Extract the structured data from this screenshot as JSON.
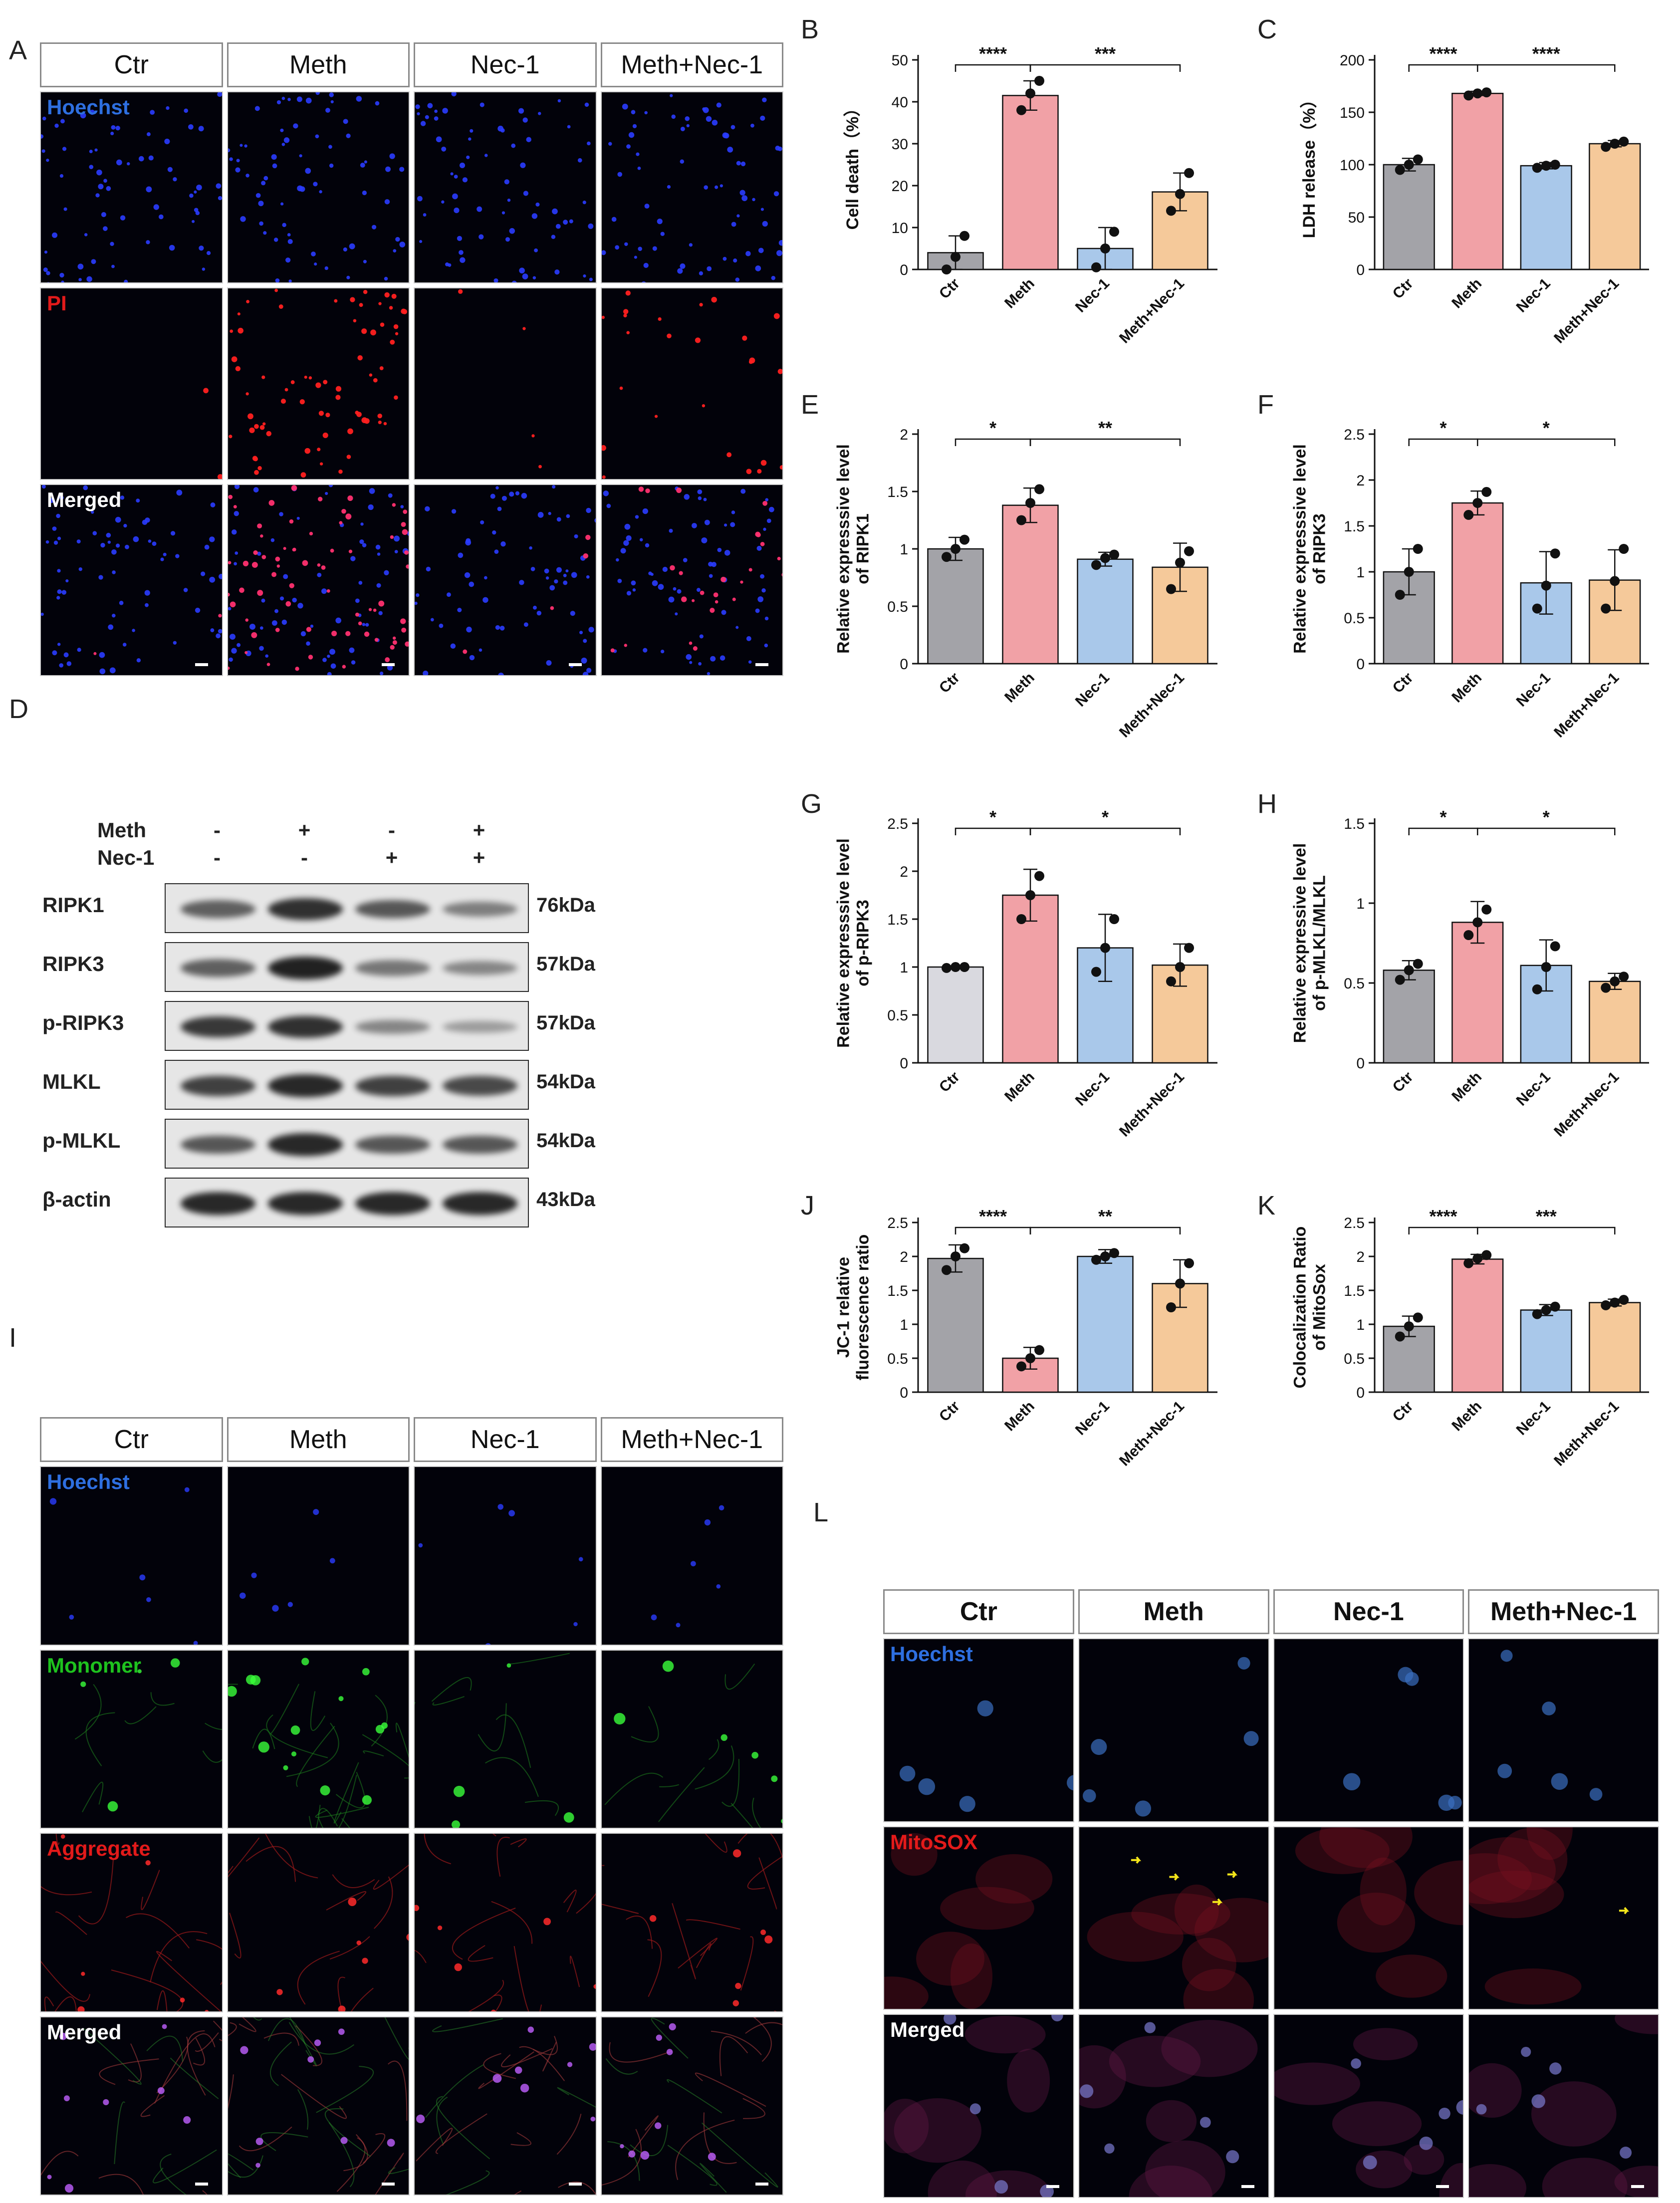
{
  "panels": {
    "A": "A",
    "B": "B",
    "C": "C",
    "D": "D",
    "E": "E",
    "F": "F",
    "G": "G",
    "H": "H",
    "I": "I",
    "J": "J",
    "K": "K",
    "L": "L"
  },
  "groups": [
    "Ctr",
    "Meth",
    "Nec-1",
    "Meth+Nec-1"
  ],
  "colors": {
    "Ctr": "#a3a3a8",
    "Meth": "#f1a1a6",
    "Nec-1": "#a9c8ea",
    "Meth+Nec-1": "#f5c99a",
    "Ctr_G": "#d9d9df"
  },
  "micro_A": {
    "headers": [
      "Ctr",
      "Meth",
      "Nec-1",
      "Meth+Nec-1"
    ],
    "rows": [
      {
        "label": "Hoechst",
        "color": "#2e6fe0"
      },
      {
        "label": "PI",
        "color": "#e21a1a"
      },
      {
        "label": "Merged",
        "color": "#ffffff"
      }
    ]
  },
  "micro_I": {
    "headers": [
      "Ctr",
      "Meth",
      "Nec-1",
      "Meth+Nec-1"
    ],
    "rows": [
      {
        "label": "Hoechst",
        "color": "#2e6fe0"
      },
      {
        "label": "Monomer",
        "color": "#1ec21e"
      },
      {
        "label": "Aggregate",
        "color": "#e21a1a"
      },
      {
        "label": "Merged",
        "color": "#ffffff"
      }
    ]
  },
  "micro_L": {
    "headers": [
      "Ctr",
      "Meth",
      "Nec-1",
      "Meth+Nec-1"
    ],
    "rows": [
      {
        "label": "Hoechst",
        "color": "#2e6fe0"
      },
      {
        "label": "MitoSOX",
        "color": "#e21a1a"
      },
      {
        "label": "Merged",
        "color": "#ffffff"
      }
    ]
  },
  "blot": {
    "treatments": [
      {
        "name": "Meth",
        "signs": [
          "-",
          "+",
          "-",
          "+"
        ]
      },
      {
        "name": "Nec-1",
        "signs": [
          "-",
          "-",
          "+",
          "+"
        ]
      }
    ],
    "proteins": [
      {
        "name": "RIPK1",
        "kda": "76kDa",
        "intensity": [
          0.55,
          0.85,
          0.6,
          0.35
        ]
      },
      {
        "name": "RIPK3",
        "kda": "57kDa",
        "intensity": [
          0.55,
          0.95,
          0.4,
          0.3
        ]
      },
      {
        "name": "p-RIPK3",
        "kda": "57kDa",
        "intensity": [
          0.8,
          0.85,
          0.3,
          0.15
        ]
      },
      {
        "name": "MLKL",
        "kda": "54kDa",
        "intensity": [
          0.75,
          0.9,
          0.75,
          0.7
        ]
      },
      {
        "name": "p-MLKL",
        "kda": "54kDa",
        "intensity": [
          0.6,
          0.9,
          0.6,
          0.6
        ]
      },
      {
        "name": "β-actin",
        "kda": "43kDa",
        "intensity": [
          0.9,
          0.9,
          0.9,
          0.9
        ]
      }
    ]
  },
  "chart_data": [
    {
      "id": "B",
      "type": "bar",
      "categories": [
        "Ctr",
        "Meth",
        "Nec-1",
        "Meth+Nec-1"
      ],
      "values": [
        4,
        41.5,
        5,
        18.5
      ],
      "errors": [
        4,
        3.5,
        5,
        4.5
      ],
      "points": [
        [
          0,
          3,
          8
        ],
        [
          38,
          42,
          45
        ],
        [
          0.5,
          5,
          9
        ],
        [
          14,
          18,
          23
        ]
      ],
      "ylabel": "Cell death（%）",
      "ylim": [
        0,
        50
      ],
      "yticks": [
        0,
        10,
        20,
        30,
        40,
        50
      ],
      "sig": [
        {
          "from": 0,
          "to": 1,
          "label": "****"
        },
        {
          "from": 1,
          "to": 3,
          "label": "***"
        }
      ]
    },
    {
      "id": "C",
      "type": "bar",
      "categories": [
        "Ctr",
        "Meth",
        "Nec-1",
        "Meth+Nec-1"
      ],
      "values": [
        100,
        168,
        99,
        120
      ],
      "errors": [
        6,
        2,
        3,
        3
      ],
      "points": [
        [
          95,
          100,
          105
        ],
        [
          166,
          168,
          169
        ],
        [
          97,
          99,
          100
        ],
        [
          117,
          120,
          122
        ]
      ],
      "ylabel": "LDH  release（%）",
      "ylim": [
        0,
        200
      ],
      "yticks": [
        0,
        50,
        100,
        150,
        200
      ],
      "sig": [
        {
          "from": 0,
          "to": 1,
          "label": "****"
        },
        {
          "from": 1,
          "to": 3,
          "label": "****"
        }
      ]
    },
    {
      "id": "E",
      "type": "bar",
      "categories": [
        "Ctr",
        "Meth",
        "Nec-1",
        "Meth+Nec-1"
      ],
      "values": [
        1.0,
        1.38,
        0.91,
        0.84
      ],
      "errors": [
        0.1,
        0.15,
        0.06,
        0.21
      ],
      "points": [
        [
          0.93,
          1.0,
          1.08
        ],
        [
          1.25,
          1.4,
          1.52
        ],
        [
          0.86,
          0.92,
          0.95
        ],
        [
          0.65,
          0.88,
          0.98
        ]
      ],
      "ylabel": "Relative expresssive level of RIPK1",
      "ylim": [
        0,
        2.0
      ],
      "yticks": [
        0,
        0.5,
        1.0,
        1.5,
        2.0
      ],
      "sig": [
        {
          "from": 0,
          "to": 1,
          "label": "*"
        },
        {
          "from": 1,
          "to": 3,
          "label": "**"
        }
      ]
    },
    {
      "id": "F",
      "type": "bar",
      "categories": [
        "Ctr",
        "Meth",
        "Nec-1",
        "Meth+Nec-1"
      ],
      "values": [
        1.0,
        1.75,
        0.88,
        0.91
      ],
      "errors": [
        0.25,
        0.13,
        0.34,
        0.33
      ],
      "points": [
        [
          0.75,
          1.0,
          1.25
        ],
        [
          1.62,
          1.75,
          1.87
        ],
        [
          0.6,
          0.85,
          1.2
        ],
        [
          0.6,
          0.9,
          1.25
        ]
      ],
      "ylabel": "Relative expresssive level of RIPK3",
      "ylim": [
        0,
        2.5
      ],
      "yticks": [
        0,
        0.5,
        1.0,
        1.5,
        2.0,
        2.5
      ],
      "sig": [
        {
          "from": 0,
          "to": 1,
          "label": "*"
        },
        {
          "from": 1,
          "to": 3,
          "label": "*"
        }
      ]
    },
    {
      "id": "G",
      "type": "bar",
      "categories": [
        "Ctr",
        "Meth",
        "Nec-1",
        "Meth+Nec-1"
      ],
      "values": [
        1.0,
        1.75,
        1.2,
        1.02
      ],
      "errors": [
        0.01,
        0.27,
        0.35,
        0.22
      ],
      "points": [
        [
          0.99,
          1.0,
          1.0
        ],
        [
          1.5,
          1.75,
          1.95
        ],
        [
          0.95,
          1.2,
          1.5
        ],
        [
          0.85,
          1.0,
          1.2
        ]
      ],
      "ylabel": "Relative expresssive level of p-RIPK3",
      "ylim": [
        0,
        2.5
      ],
      "yticks": [
        0,
        0.5,
        1.0,
        1.5,
        2.0,
        2.5
      ],
      "sig": [
        {
          "from": 0,
          "to": 1,
          "label": "*"
        },
        {
          "from": 1,
          "to": 3,
          "label": "*"
        }
      ]
    },
    {
      "id": "H",
      "type": "bar",
      "categories": [
        "Ctr",
        "Meth",
        "Nec-1",
        "Meth+Nec-1"
      ],
      "values": [
        0.58,
        0.88,
        0.61,
        0.51
      ],
      "errors": [
        0.06,
        0.13,
        0.16,
        0.05
      ],
      "points": [
        [
          0.52,
          0.58,
          0.62
        ],
        [
          0.8,
          0.88,
          0.96
        ],
        [
          0.46,
          0.6,
          0.73
        ],
        [
          0.47,
          0.51,
          0.54
        ]
      ],
      "ylabel": "Relative expressive level of p-MLKL/MLKL",
      "ylim": [
        0,
        1.5
      ],
      "yticks": [
        0,
        0.5,
        1.0,
        1.5
      ],
      "sig": [
        {
          "from": 0,
          "to": 1,
          "label": "*"
        },
        {
          "from": 1,
          "to": 3,
          "label": "*"
        }
      ]
    },
    {
      "id": "J",
      "type": "bar",
      "categories": [
        "Ctr",
        "Meth",
        "Nec-1",
        "Meth+Nec-1"
      ],
      "values": [
        1.97,
        0.5,
        2.0,
        1.6
      ],
      "errors": [
        0.2,
        0.16,
        0.1,
        0.35
      ],
      "points": [
        [
          1.8,
          2.0,
          2.12
        ],
        [
          0.38,
          0.5,
          0.62
        ],
        [
          1.95,
          2.0,
          2.05
        ],
        [
          1.25,
          1.6,
          1.9
        ]
      ],
      "ylabel": "JC-1 relative fluorescence ratio",
      "ylim": [
        0,
        2.5
      ],
      "yticks": [
        0,
        0.5,
        1.0,
        1.5,
        2.0,
        2.5
      ],
      "sig": [
        {
          "from": 0,
          "to": 1,
          "label": "****"
        },
        {
          "from": 1,
          "to": 3,
          "label": "**"
        }
      ]
    },
    {
      "id": "K",
      "type": "bar",
      "categories": [
        "Ctr",
        "Meth",
        "Nec-1",
        "Meth+Nec-1"
      ],
      "values": [
        0.97,
        1.96,
        1.21,
        1.32
      ],
      "errors": [
        0.15,
        0.07,
        0.08,
        0.05
      ],
      "points": [
        [
          0.82,
          0.97,
          1.1
        ],
        [
          1.9,
          1.97,
          2.02
        ],
        [
          1.15,
          1.21,
          1.26
        ],
        [
          1.28,
          1.32,
          1.36
        ]
      ],
      "ylabel": "Colocalization Ratio of MitoSox",
      "ylim": [
        0,
        2.5
      ],
      "yticks": [
        0,
        0.5,
        1.0,
        1.5,
        2.0,
        2.5
      ],
      "sig": [
        {
          "from": 0,
          "to": 1,
          "label": "****"
        },
        {
          "from": 1,
          "to": 3,
          "label": "***"
        }
      ]
    }
  ]
}
